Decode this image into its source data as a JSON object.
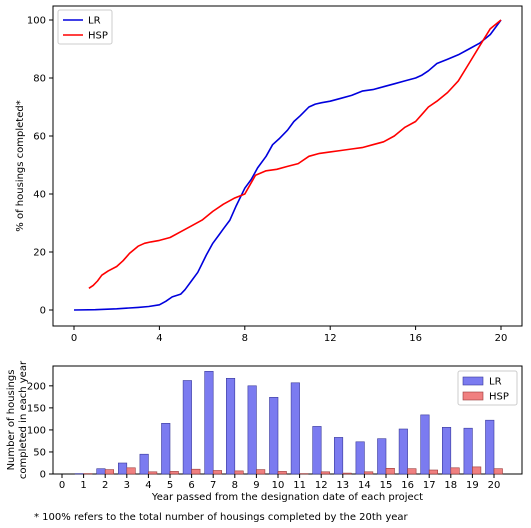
{
  "chart_data": [
    {
      "type": "line",
      "xlabel": "",
      "ylabel": "% of housings completed*",
      "xlim": [
        0,
        20
      ],
      "ylim": [
        0,
        100
      ],
      "xticks": [
        "0",
        "4",
        "8",
        "12",
        "16",
        "20"
      ],
      "yticks": [
        "0",
        "20",
        "40",
        "60",
        "80",
        "100"
      ],
      "grid": false,
      "legend_position": "upper-left",
      "series": [
        {
          "name": "LR",
          "color": "#0000dd",
          "x": [
            0,
            1,
            2,
            3,
            3.5,
            4,
            4.3,
            4.6,
            5,
            5.2,
            5.5,
            5.8,
            6,
            6.2,
            6.5,
            6.8,
            7,
            7.3,
            7.6,
            8,
            8.3,
            8.6,
            9,
            9.3,
            9.6,
            10,
            10.3,
            10.6,
            11,
            11.3,
            11.6,
            12,
            12.5,
            13,
            13.5,
            14,
            14.5,
            15,
            15.5,
            16,
            16.3,
            16.6,
            17,
            17.5,
            18,
            18.5,
            19,
            19.5,
            20
          ],
          "y": [
            0,
            0.1,
            0.4,
            0.9,
            1.2,
            1.8,
            3,
            4.5,
            5.5,
            7,
            10,
            13,
            16,
            19,
            23,
            26,
            28,
            31,
            36,
            42,
            45,
            49,
            53,
            57,
            59,
            62,
            65,
            67,
            70,
            71,
            71.5,
            72,
            73,
            74,
            75.5,
            76,
            77,
            78,
            79,
            80,
            81,
            82.5,
            85,
            86.5,
            88,
            90,
            92,
            95,
            100
          ]
        },
        {
          "name": "HSP",
          "color": "#ff0000",
          "x": [
            0.7,
            0.9,
            1.1,
            1.3,
            1.6,
            2,
            2.3,
            2.6,
            3,
            3.3,
            3.6,
            4,
            4.5,
            5,
            5.5,
            6,
            6.5,
            7,
            7.5,
            8,
            8.5,
            9,
            9.5,
            10,
            10.5,
            11,
            11.5,
            12,
            12.5,
            13,
            13.5,
            14,
            14.5,
            15,
            15.5,
            16,
            16.3,
            16.6,
            17,
            17.5,
            18,
            18.5,
            19,
            19.5,
            20
          ],
          "y": [
            7.5,
            8.5,
            10,
            12,
            13.5,
            15,
            17,
            19.5,
            22,
            23,
            23.5,
            24,
            25,
            27,
            29,
            31,
            34,
            36.5,
            38.5,
            40,
            46.5,
            48,
            48.5,
            49.5,
            50.5,
            53,
            54,
            54.5,
            55,
            55.5,
            56,
            57,
            58,
            60,
            63,
            65,
            67.5,
            70,
            72,
            75,
            79,
            85,
            91,
            97,
            100
          ]
        }
      ]
    },
    {
      "type": "bar",
      "xlabel": "Year passed from the designation date of each project",
      "ylabel": "Number of housings\ncompleted in each year",
      "categories": [
        "0",
        "1",
        "2",
        "3",
        "4",
        "5",
        "6",
        "7",
        "8",
        "9",
        "10",
        "11",
        "12",
        "13",
        "14",
        "15",
        "16",
        "17",
        "18",
        "19",
        "20"
      ],
      "ylim": [
        0,
        245
      ],
      "yticks": [
        "0",
        "50",
        "100",
        "150",
        "200"
      ],
      "grid": false,
      "legend_position": "upper-right",
      "series": [
        {
          "name": "LR",
          "color": "#7b7bf0",
          "values": [
            0,
            1,
            12,
            25,
            45,
            115,
            212,
            233,
            217,
            200,
            174,
            207,
            108,
            83,
            73,
            80,
            102,
            134,
            106,
            104,
            122
          ]
        },
        {
          "name": "HSP",
          "color": "#f08080",
          "values": [
            0,
            1,
            10,
            14,
            5,
            6,
            11,
            8,
            7,
            10,
            6,
            1,
            5,
            2,
            5,
            13,
            12,
            9,
            14,
            16,
            12
          ]
        }
      ]
    }
  ],
  "footnote": "* 100% refers to the total number of housings completed by the 20th year"
}
